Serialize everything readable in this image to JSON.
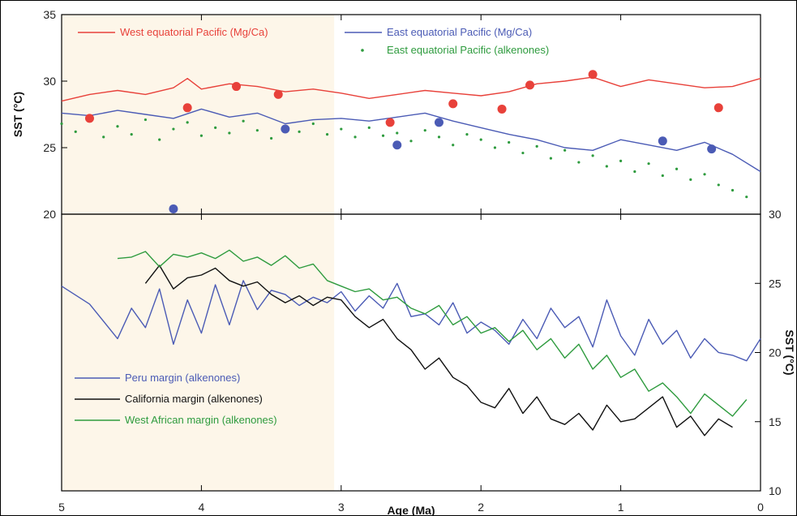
{
  "chart_data": [
    {
      "type": "line",
      "panel": "top",
      "xlabel": "Age (Ma)",
      "ylabel": "SST (°C)",
      "xlim": [
        5,
        0
      ],
      "ylim": [
        20,
        35
      ],
      "yticks": [
        "20",
        "25",
        "30",
        "35"
      ],
      "xticks": [
        "5",
        "4",
        "3",
        "2",
        "1",
        "0"
      ],
      "shaded_interval": [
        5,
        3.05
      ],
      "grid": false,
      "legend": "top",
      "colors": {
        "red": "#e8413a",
        "blue": "#4b5bb5",
        "green": "#2e9b3e"
      },
      "series": [
        {
          "name": "West equatorial Pacific (Mg/Ca)",
          "style": "line",
          "color": "#e8413a",
          "x": [
            5.0,
            4.8,
            4.6,
            4.4,
            4.2,
            4.1,
            4.0,
            3.8,
            3.6,
            3.4,
            3.2,
            3.0,
            2.8,
            2.6,
            2.4,
            2.2,
            2.0,
            1.8,
            1.6,
            1.4,
            1.2,
            1.0,
            0.8,
            0.6,
            0.4,
            0.2,
            0.0
          ],
          "y": [
            28.5,
            29.0,
            29.3,
            29.0,
            29.5,
            30.2,
            29.4,
            29.8,
            29.6,
            29.2,
            29.4,
            29.1,
            28.7,
            29.0,
            29.3,
            29.1,
            28.9,
            29.2,
            29.8,
            30.0,
            30.3,
            29.6,
            30.1,
            29.8,
            29.5,
            29.6,
            30.2
          ]
        },
        {
          "name": "East equatorial Pacific (Mg/Ca)",
          "style": "line",
          "color": "#4b5bb5",
          "x": [
            5.0,
            4.8,
            4.6,
            4.4,
            4.2,
            4.0,
            3.8,
            3.6,
            3.4,
            3.2,
            3.0,
            2.8,
            2.6,
            2.4,
            2.2,
            2.0,
            1.8,
            1.6,
            1.4,
            1.2,
            1.0,
            0.8,
            0.6,
            0.4,
            0.2,
            0.0
          ],
          "y": [
            27.6,
            27.4,
            27.8,
            27.5,
            27.2,
            27.9,
            27.3,
            27.6,
            26.8,
            27.1,
            27.2,
            27.0,
            27.3,
            27.6,
            27.0,
            26.5,
            26.0,
            25.6,
            25.0,
            24.8,
            25.6,
            25.2,
            24.8,
            25.4,
            24.5,
            23.2
          ]
        },
        {
          "name": "East equatorial Pacific (alkenones)",
          "style": "scatter",
          "color": "#2e9b3e",
          "x": [
            5.0,
            4.9,
            4.8,
            4.7,
            4.6,
            4.5,
            4.4,
            4.3,
            4.2,
            4.1,
            4.0,
            3.9,
            3.8,
            3.7,
            3.6,
            3.5,
            3.4,
            3.3,
            3.2,
            3.1,
            3.0,
            2.9,
            2.8,
            2.7,
            2.6,
            2.5,
            2.4,
            2.3,
            2.2,
            2.1,
            2.0,
            1.9,
            1.8,
            1.7,
            1.6,
            1.5,
            1.4,
            1.3,
            1.2,
            1.1,
            1.0,
            0.9,
            0.8,
            0.7,
            0.6,
            0.5,
            0.4,
            0.3,
            0.2,
            0.1
          ],
          "y": [
            26.8,
            26.2,
            27.0,
            25.8,
            26.6,
            26.0,
            27.1,
            25.6,
            26.4,
            26.9,
            25.9,
            26.5,
            26.1,
            27.0,
            26.3,
            25.7,
            26.6,
            26.2,
            26.8,
            26.0,
            26.4,
            25.8,
            26.5,
            25.9,
            26.1,
            25.5,
            26.3,
            25.8,
            25.2,
            26.0,
            25.6,
            25.0,
            25.4,
            24.6,
            25.1,
            24.2,
            24.8,
            23.9,
            24.4,
            23.6,
            24.0,
            23.2,
            23.8,
            22.9,
            23.4,
            22.6,
            23.0,
            22.2,
            21.8,
            21.3
          ]
        },
        {
          "name": "West equatorial Pacific (Mg/Ca) samples",
          "style": "points",
          "color": "#e8413a",
          "x": [
            4.8,
            4.1,
            3.75,
            3.45,
            2.65,
            2.2,
            1.85,
            1.65,
            1.2,
            0.3
          ],
          "y": [
            27.2,
            28.0,
            29.6,
            29.0,
            26.9,
            28.3,
            27.9,
            29.7,
            30.5,
            28.0
          ]
        },
        {
          "name": "East equatorial Pacific (Mg/Ca) samples",
          "style": "points",
          "color": "#4b5bb5",
          "x": [
            4.2,
            3.4,
            2.6,
            2.3,
            0.7,
            0.35
          ],
          "y": [
            20.4,
            26.4,
            25.2,
            26.9,
            25.5,
            24.9
          ]
        }
      ]
    },
    {
      "type": "line",
      "panel": "bottom",
      "xlabel": "Age (Ma)",
      "ylabel": "SST (°C)",
      "xlim": [
        5,
        0
      ],
      "ylim": [
        10,
        30
      ],
      "yticks": [
        "10",
        "15",
        "20",
        "25",
        "30"
      ],
      "shaded_interval": [
        5,
        3.05
      ],
      "grid": false,
      "legend": "bottom-left",
      "series": [
        {
          "name": "Peru margin (alkenones)",
          "color": "#4b5bb5",
          "x": [
            5.0,
            4.8,
            4.6,
            4.5,
            4.4,
            4.3,
            4.2,
            4.1,
            4.0,
            3.9,
            3.8,
            3.7,
            3.6,
            3.5,
            3.4,
            3.3,
            3.2,
            3.1,
            3.0,
            2.9,
            2.8,
            2.7,
            2.6,
            2.5,
            2.4,
            2.3,
            2.2,
            2.1,
            2.0,
            1.9,
            1.8,
            1.7,
            1.6,
            1.5,
            1.4,
            1.3,
            1.2,
            1.1,
            1.0,
            0.9,
            0.8,
            0.7,
            0.6,
            0.5,
            0.4,
            0.3,
            0.2,
            0.1,
            0.0
          ],
          "y": [
            24.8,
            23.5,
            21.0,
            23.2,
            21.8,
            24.6,
            20.6,
            23.8,
            21.4,
            24.9,
            22.0,
            25.2,
            23.1,
            24.5,
            24.2,
            23.4,
            24.0,
            23.6,
            24.4,
            23.0,
            24.1,
            23.2,
            25.0,
            22.6,
            22.8,
            22.0,
            23.6,
            21.4,
            22.2,
            21.6,
            20.6,
            22.4,
            21.0,
            23.2,
            21.8,
            22.6,
            20.4,
            23.8,
            21.2,
            19.8,
            22.4,
            20.6,
            21.6,
            19.6,
            21.0,
            20.0,
            19.8,
            19.4,
            21.0
          ]
        },
        {
          "name": "California margin (alkenones)",
          "color": "#111111",
          "x": [
            4.4,
            4.3,
            4.2,
            4.1,
            4.0,
            3.9,
            3.8,
            3.7,
            3.6,
            3.5,
            3.4,
            3.3,
            3.2,
            3.1,
            3.0,
            2.9,
            2.8,
            2.7,
            2.6,
            2.5,
            2.4,
            2.3,
            2.2,
            2.1,
            2.0,
            1.9,
            1.8,
            1.7,
            1.6,
            1.5,
            1.4,
            1.3,
            1.2,
            1.1,
            1.0,
            0.9,
            0.8,
            0.7,
            0.6,
            0.5,
            0.4,
            0.3,
            0.2
          ],
          "y": [
            25.0,
            26.3,
            24.6,
            25.4,
            25.6,
            26.1,
            25.2,
            24.8,
            25.1,
            24.2,
            23.6,
            24.1,
            23.4,
            24.0,
            23.8,
            22.6,
            21.8,
            22.4,
            21.0,
            20.2,
            18.8,
            19.6,
            18.2,
            17.6,
            16.4,
            16.0,
            17.4,
            15.6,
            16.8,
            15.2,
            14.8,
            15.6,
            14.4,
            16.2,
            15.0,
            15.2,
            16.0,
            16.8,
            14.6,
            15.4,
            14.0,
            15.2,
            14.6
          ]
        },
        {
          "name": "West African margin (alkenones)",
          "color": "#2e9b3e",
          "x": [
            4.6,
            4.5,
            4.4,
            4.3,
            4.2,
            4.1,
            4.0,
            3.9,
            3.8,
            3.7,
            3.6,
            3.5,
            3.4,
            3.3,
            3.2,
            3.1,
            3.0,
            2.9,
            2.8,
            2.7,
            2.6,
            2.5,
            2.4,
            2.3,
            2.2,
            2.1,
            2.0,
            1.9,
            1.8,
            1.7,
            1.6,
            1.5,
            1.4,
            1.3,
            1.2,
            1.1,
            1.0,
            0.9,
            0.8,
            0.7,
            0.6,
            0.5,
            0.4,
            0.3,
            0.2,
            0.1
          ],
          "y": [
            26.8,
            26.9,
            27.3,
            26.2,
            27.1,
            26.9,
            27.2,
            26.8,
            27.4,
            26.6,
            26.9,
            26.3,
            27.0,
            26.1,
            26.4,
            25.2,
            24.8,
            24.4,
            24.6,
            23.8,
            24.0,
            23.2,
            22.8,
            23.4,
            22.0,
            22.6,
            21.4,
            21.8,
            20.8,
            21.6,
            20.2,
            21.0,
            19.6,
            20.6,
            18.8,
            19.8,
            18.2,
            18.8,
            17.2,
            17.8,
            16.8,
            15.6,
            17.0,
            16.2,
            15.4,
            16.6
          ]
        }
      ]
    }
  ]
}
